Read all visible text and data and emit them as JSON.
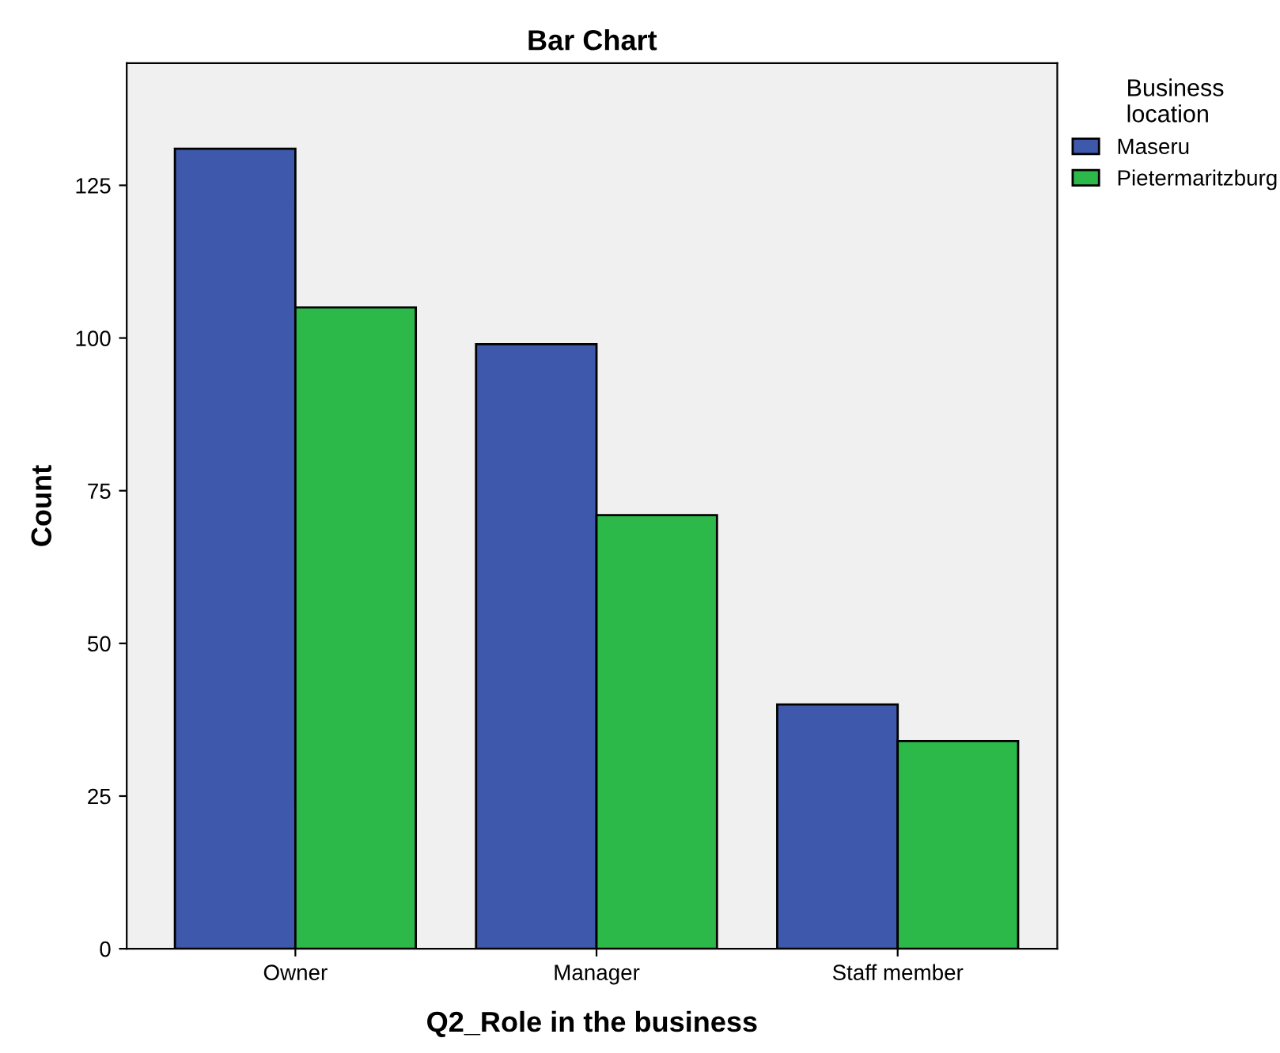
{
  "chart_data": {
    "type": "bar",
    "title": "Bar Chart",
    "xlabel": "Q2_Role in the business",
    "ylabel": "Count",
    "legend_title": "Business\nlocation",
    "categories": [
      "Owner",
      "Manager",
      "Staff member"
    ],
    "series": [
      {
        "name": "Maseru",
        "color": "#3e58ac",
        "values": [
          131,
          99,
          40
        ]
      },
      {
        "name": "Pietermaritzburg",
        "color": "#2db84a",
        "values": [
          105,
          71,
          34
        ]
      }
    ],
    "ylim": [
      0,
      145
    ],
    "yticks": [
      0,
      25,
      50,
      75,
      100,
      125
    ],
    "grid": false,
    "legend": "top right"
  }
}
